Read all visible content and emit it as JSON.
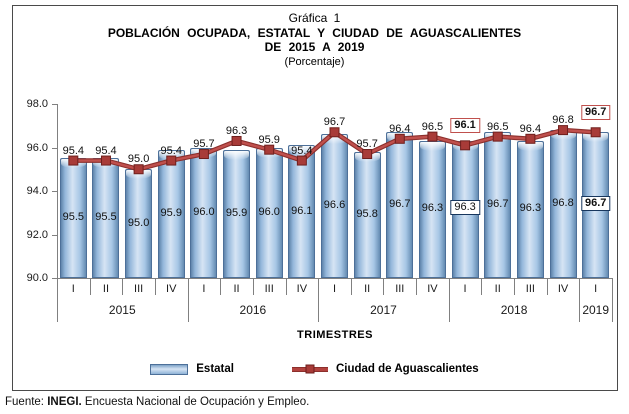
{
  "title": {
    "line1": "Gráfica 1",
    "line2": "POBLACIÓN OCUPADA, ESTATAL Y CIUDAD DE AGUASCALIENTES",
    "line3": "DE 2015 A 2019",
    "line4": "(Porcentaje)"
  },
  "chart_data": {
    "type": "bar",
    "title": "POBLACIÓN OCUPADA, ESTATAL Y CIUDAD DE AGUASCALIENTES DE 2015 A 2019 (Porcentaje)",
    "x_axis_label": "TRIMESTRES",
    "ylim": [
      90.0,
      98.0
    ],
    "y_ticks": [
      "98.0",
      "96.0",
      "94.0",
      "92.0",
      "90.0"
    ],
    "grid": "off",
    "legend_position": "bottom",
    "years": [
      {
        "label": "2015",
        "quarters": [
          "I",
          "II",
          "III",
          "IV"
        ]
      },
      {
        "label": "2016",
        "quarters": [
          "I",
          "II",
          "III",
          "IV"
        ]
      },
      {
        "label": "2017",
        "quarters": [
          "I",
          "II",
          "III",
          "IV"
        ]
      },
      {
        "label": "2018",
        "quarters": [
          "I",
          "II",
          "III",
          "IV"
        ]
      },
      {
        "label": "2019",
        "quarters": [
          "I"
        ]
      }
    ],
    "series": [
      {
        "name": "Estatal",
        "type": "bar",
        "color": "#a6c6e5",
        "values": [
          95.5,
          95.5,
          95.0,
          95.9,
          96.0,
          95.9,
          96.0,
          96.1,
          96.6,
          95.8,
          96.7,
          96.3,
          96.3,
          96.7,
          96.3,
          96.8,
          96.7
        ]
      },
      {
        "name": "Ciudad de Aguascalientes",
        "type": "line",
        "color": "#b2423e",
        "values": [
          95.4,
          95.4,
          95.0,
          95.4,
          95.7,
          96.3,
          95.9,
          95.4,
          96.7,
          95.7,
          96.4,
          96.5,
          96.1,
          96.5,
          96.4,
          96.8,
          96.7
        ]
      }
    ],
    "annotations": {
      "boxed_indices": [
        12,
        16
      ],
      "bold_line_indices": [
        12,
        16
      ],
      "bold_bar_indices": [
        16
      ]
    },
    "colors": {
      "bar_edge": "#4d7099",
      "line_outer": "#8c2f2c",
      "line_inner": "#c0504d",
      "marker_fill": "#a83b38",
      "marker_edge": "#6e1f1d",
      "axis": "#808080",
      "box_border_line": "#c0504d",
      "box_border_bar": "#17365d"
    }
  },
  "footer": {
    "prefix": "Fuente: ",
    "source": "INEGI.",
    "rest": " Encuesta Nacional de Ocupación y Empleo."
  }
}
